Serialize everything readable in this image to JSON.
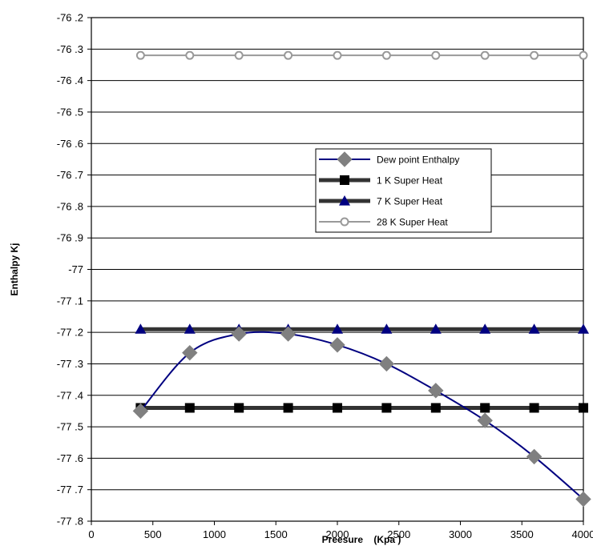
{
  "chart_data": {
    "type": "line",
    "title": "",
    "xlabel": "Preesure    (Kpa )",
    "ylabel": "Enthalpy  Kj",
    "xlim": [
      0,
      4000
    ],
    "ylim": [
      -77.8,
      -76.2
    ],
    "x_ticks": [
      "0",
      "500",
      "1000",
      "1500",
      "2000",
      "2500",
      "3000",
      "3500",
      "4000"
    ],
    "y_ticks": [
      "-76 .2",
      "-76 .3",
      "-76 .4",
      "-76 .5",
      "-76 .6",
      "-76 .7",
      "-76 .8",
      "-76 .9",
      "-77",
      "-77 .1",
      "-77 .2",
      "-77 .3",
      "-77 .4",
      "-77 .5",
      "-77 .6",
      "-77 .7",
      "-77 .8"
    ],
    "grid": "horizontal",
    "legend_position": "center-right",
    "x": [
      400,
      800,
      1200,
      1600,
      2000,
      2400,
      2800,
      3200,
      3600,
      4000
    ],
    "series": [
      {
        "name": "Dew point Enthalpy",
        "color": "#000080",
        "marker": "diamond",
        "marker_color": "#808080",
        "line_width": 2,
        "smooth": true,
        "values": [
          -77.45,
          -77.265,
          -77.205,
          -77.205,
          -77.24,
          -77.3,
          -77.385,
          -77.48,
          -77.595,
          -77.73
        ]
      },
      {
        "name": "1  K Super Heat",
        "color": "#333333",
        "marker": "square",
        "marker_color": "#000000",
        "line_width": 5,
        "smooth": false,
        "values": [
          -77.44,
          -77.44,
          -77.44,
          -77.44,
          -77.44,
          -77.44,
          -77.44,
          -77.44,
          -77.44,
          -77.44
        ]
      },
      {
        "name": "7  K Super Heat",
        "color": "#333333",
        "marker": "triangle",
        "marker_color": "#000080",
        "line_width": 5,
        "smooth": false,
        "values": [
          -77.19,
          -77.19,
          -77.19,
          -77.19,
          -77.19,
          -77.19,
          -77.19,
          -77.19,
          -77.19,
          -77.19
        ]
      },
      {
        "name": "28  K Super Heat",
        "color": "#999999",
        "marker": "circle",
        "marker_color": "#999999",
        "line_width": 2,
        "smooth": false,
        "values": [
          -76.32,
          -76.32,
          -76.32,
          -76.32,
          -76.32,
          -76.32,
          -76.32,
          -76.32,
          -76.32,
          -76.32
        ]
      }
    ]
  }
}
